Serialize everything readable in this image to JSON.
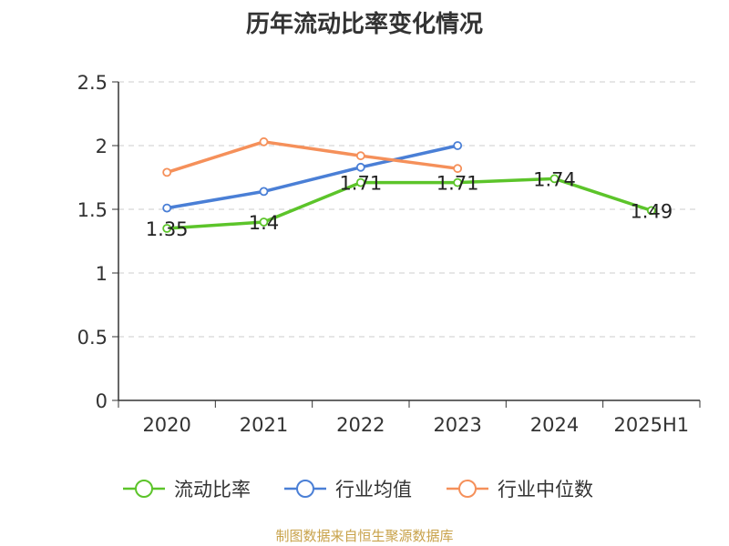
{
  "title": "历年流动比率变化情况",
  "source": "制图数据来自恒生聚源数据库",
  "colors": {
    "current_ratio": "#5cc42a",
    "industry_avg": "#4a7fd6",
    "industry_median": "#f5905a",
    "axis": "#333333",
    "grid": "#cccccc"
  },
  "chart_data": {
    "type": "line",
    "title": "历年流动比率变化情况",
    "xlabel": "",
    "ylabel": "",
    "categories": [
      "2020",
      "2021",
      "2022",
      "2023",
      "2024",
      "2025H1"
    ],
    "ylim": [
      0,
      2.5
    ],
    "yticks": [
      "0",
      "0.5",
      "1",
      "1.5",
      "2",
      "2.5"
    ],
    "grid": true,
    "legend_position": "bottom",
    "series": [
      {
        "name": "流动比率",
        "key": "current_ratio",
        "values": [
          1.35,
          1.4,
          1.71,
          1.71,
          1.74,
          1.49
        ],
        "labels": [
          "1.35",
          "1.4",
          "1.71",
          "1.71",
          "1.74",
          "1.49"
        ]
      },
      {
        "name": "行业均值",
        "key": "industry_avg",
        "values": [
          1.51,
          1.64,
          1.83,
          2.0,
          null,
          null
        ]
      },
      {
        "name": "行业中位数",
        "key": "industry_median",
        "values": [
          1.79,
          2.03,
          1.92,
          1.82,
          null,
          null
        ]
      }
    ]
  }
}
